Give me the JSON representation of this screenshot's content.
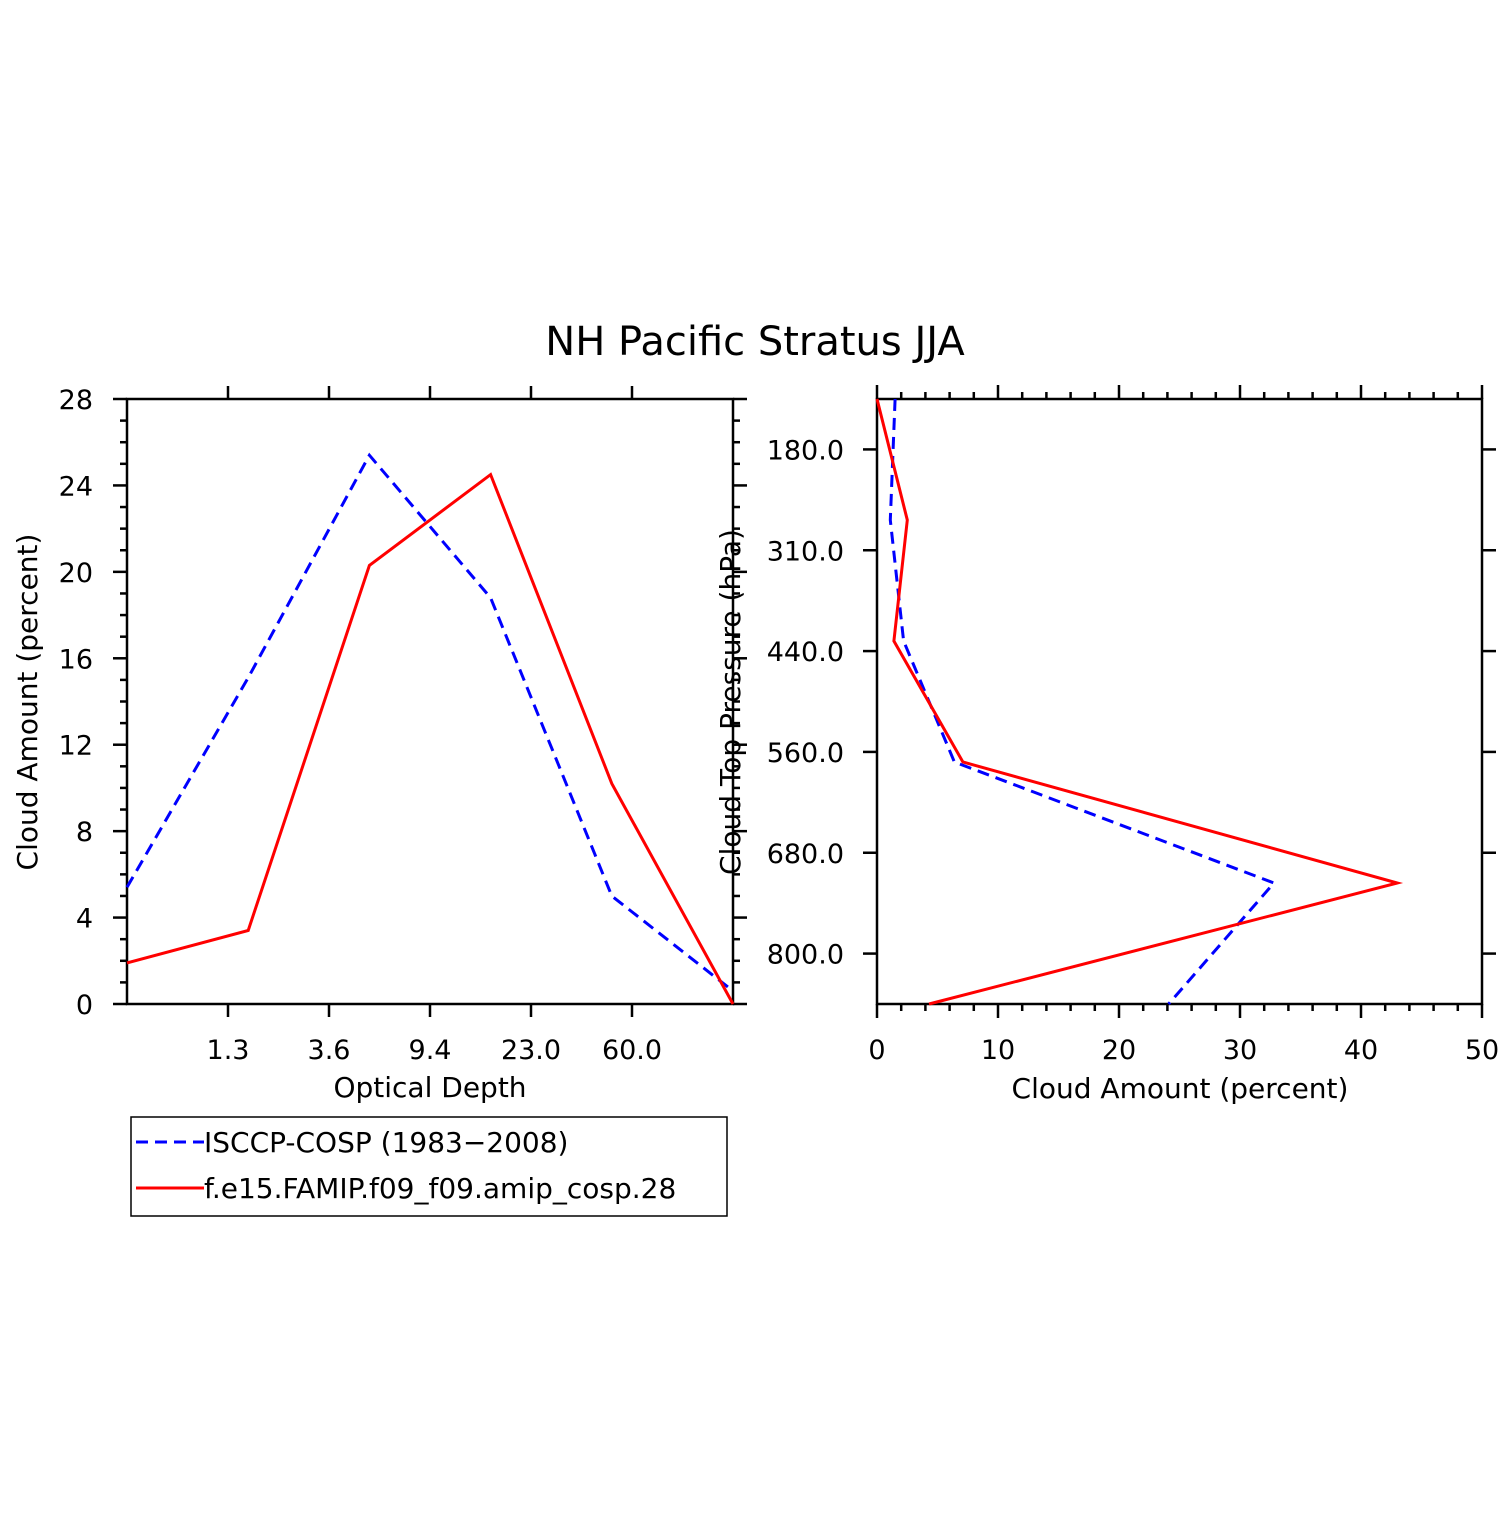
{
  "title": "NH Pacific Stratus JJA",
  "colors": {
    "observation": "#0000ff",
    "model": "#ff0000",
    "axes": "#000000"
  },
  "chart_data": [
    {
      "type": "line",
      "xlabel": "Optical Depth",
      "ylabel": "Cloud Amount (percent)",
      "ylim": [
        0,
        28
      ],
      "y_ticks": [
        "0",
        "4",
        "8",
        "12",
        "16",
        "20",
        "24",
        "28"
      ],
      "x_tick_labels": [
        "1.3",
        "3.6",
        "9.4",
        "23.0",
        "60.0"
      ],
      "x_scale": "categorical bins",
      "grid": false,
      "series": [
        {
          "name": "ISCCP-COSP (1983-2008)",
          "style": "dashed",
          "color": "#0000ff",
          "values": [
            5.4,
            15.1,
            25.4,
            18.8,
            5.0,
            0.6
          ]
        },
        {
          "name": "f.e15.FAMIP.f09_f09.amip_cosp.28",
          "style": "solid",
          "color": "#ff0000",
          "values": [
            1.9,
            3.4,
            20.3,
            24.5,
            10.2,
            0.0
          ]
        }
      ]
    },
    {
      "type": "line",
      "orientation": "vertical profile",
      "xlabel": "Cloud Amount (percent)",
      "ylabel": "Cloud Top Pressure (hPa)",
      "xlim": [
        0,
        50
      ],
      "x_ticks": [
        "0",
        "10",
        "20",
        "30",
        "40",
        "50"
      ],
      "y_tick_labels": [
        "180.0",
        "310.0",
        "440.0",
        "560.0",
        "680.0",
        "800.0"
      ],
      "y_scale": "categorical levels, pressure increasing downward",
      "grid": false,
      "series": [
        {
          "name": "ISCCP-COSP (1983-2008)",
          "style": "dashed",
          "color": "#0000ff",
          "values": [
            1.5,
            1.1,
            2.2,
            6.4,
            32.8,
            24.1
          ]
        },
        {
          "name": "f.e15.FAMIP.f09_f09.amip_cosp.28",
          "style": "solid",
          "color": "#ff0000",
          "values": [
            0.0,
            2.5,
            1.4,
            7.1,
            43.0,
            4.3
          ]
        }
      ]
    }
  ],
  "legend": {
    "placement": "below left panel",
    "entries": [
      {
        "label": "ISCCP-COSP (1983−2008)",
        "style": "dashed",
        "color": "#0000ff"
      },
      {
        "label": "f.e15.FAMIP.f09_f09.amip_cosp.28",
        "style": "solid",
        "color": "#ff0000"
      }
    ]
  }
}
